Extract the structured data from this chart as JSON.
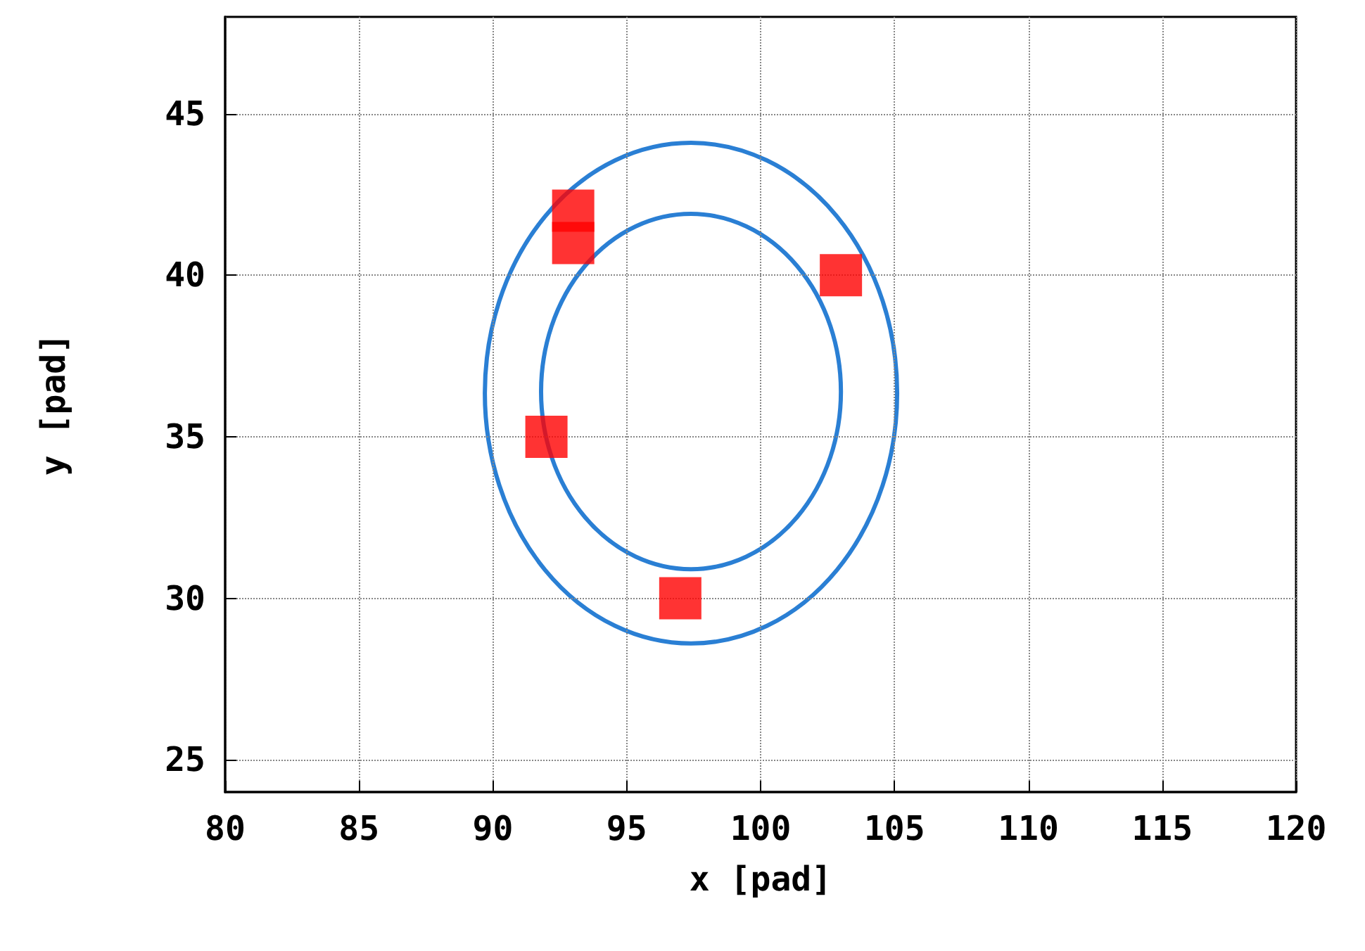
{
  "chart_data": {
    "type": "scatter",
    "xlabel": "x [pad]",
    "ylabel": "y [pad]",
    "xlim": [
      80,
      120
    ],
    "xticks": [
      80,
      85,
      90,
      95,
      100,
      105,
      110,
      115,
      120
    ],
    "ylim": [
      24,
      48
    ],
    "yticks": [
      25,
      30,
      35,
      40,
      45
    ],
    "grid": true,
    "series": [
      {
        "color": "#ff0000",
        "marker": "square",
        "x": [
          93,
          93,
          103,
          92,
          97
        ],
        "values": [
          42,
          41,
          40,
          35,
          30
        ]
      }
    ]
  }
}
